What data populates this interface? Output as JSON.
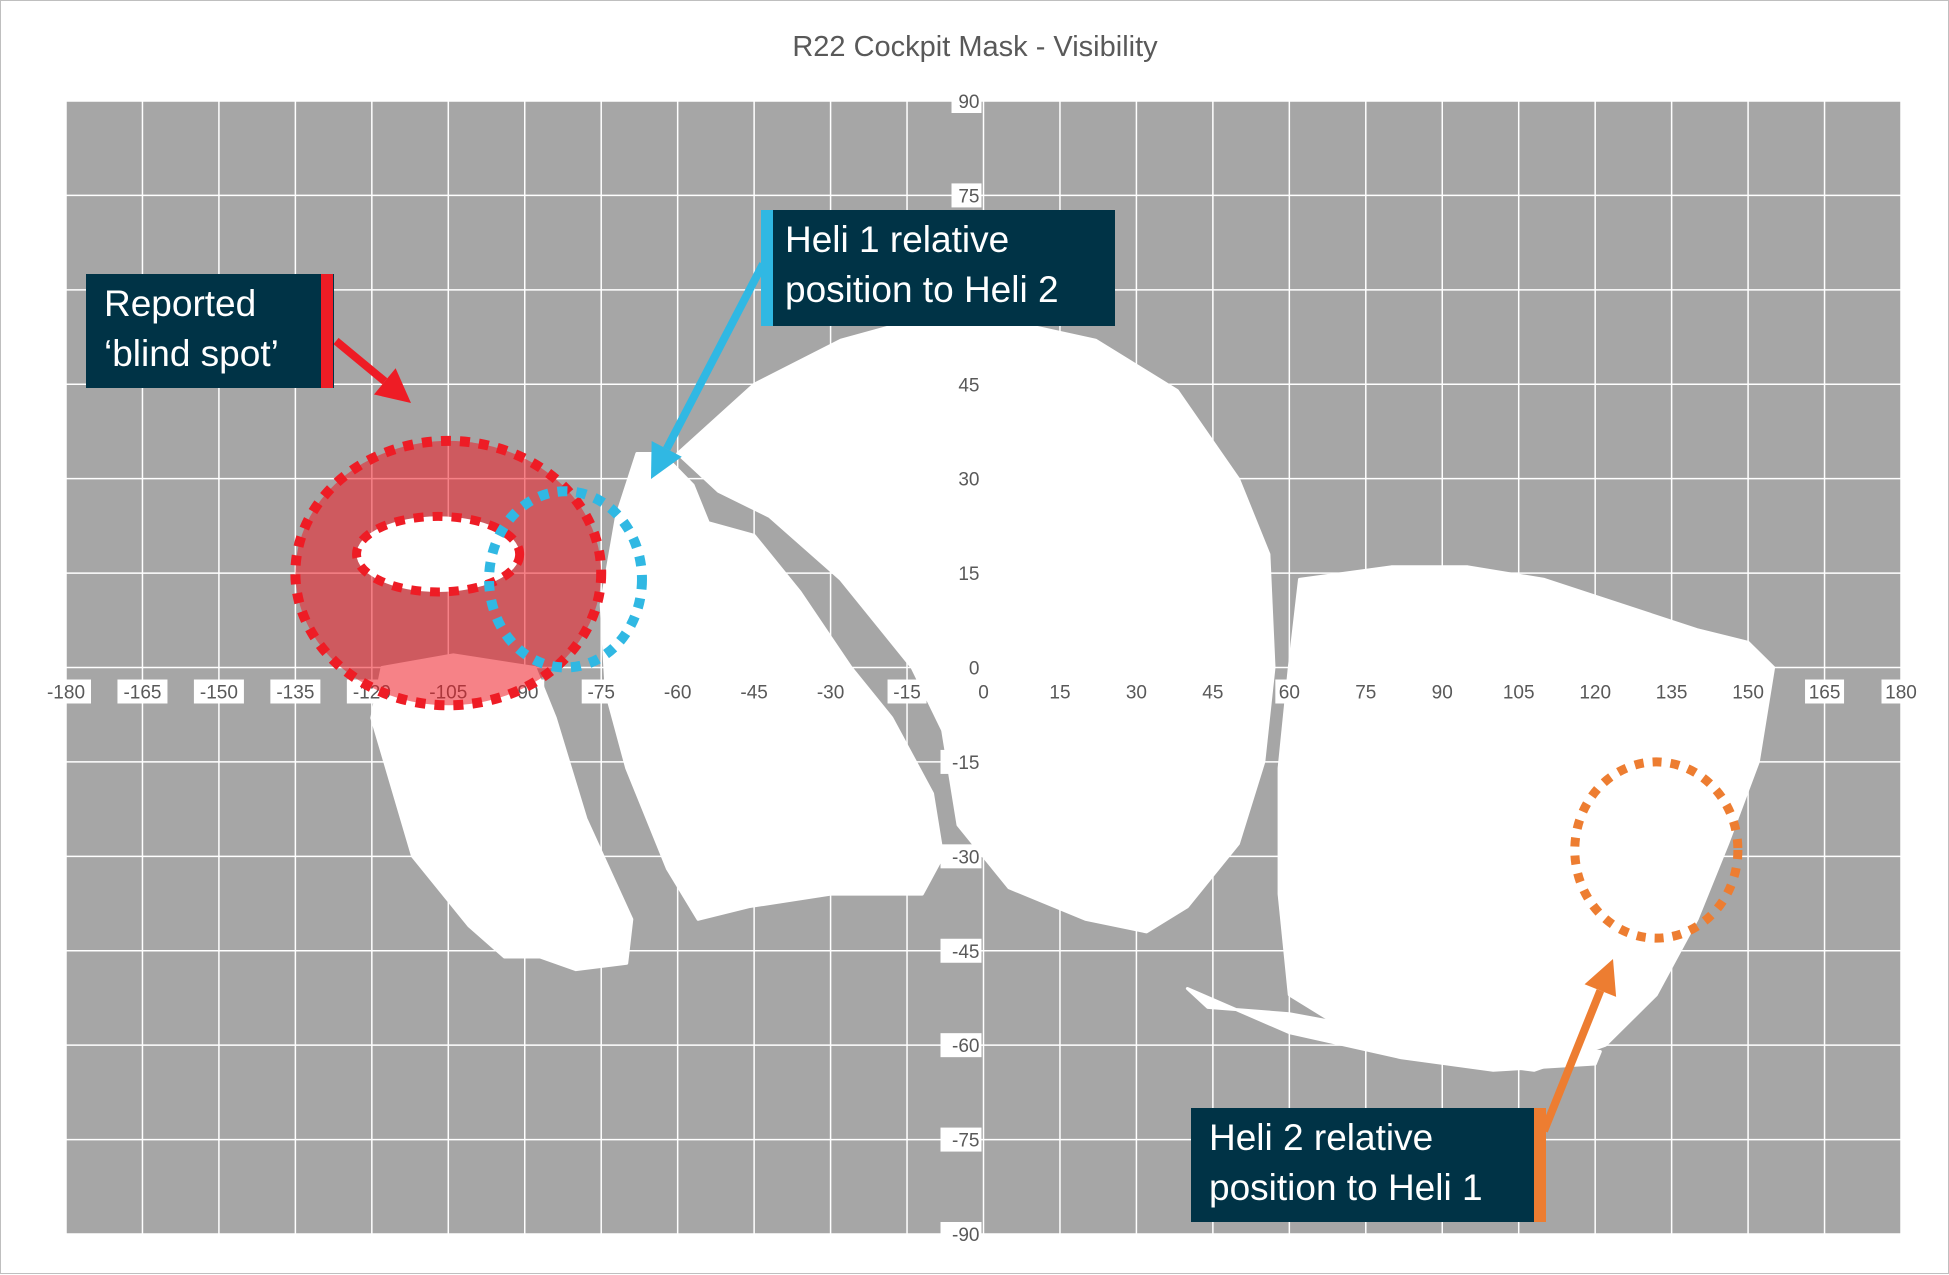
{
  "chart_data": {
    "type": "scatter",
    "title": "R22 Cockpit Mask - Visibility",
    "xlim": [
      -180,
      180
    ],
    "ylim": [
      -90,
      90
    ],
    "x_ticks": [
      -180,
      -165,
      -150,
      -135,
      -120,
      -105,
      -90,
      -75,
      -60,
      -45,
      -30,
      -15,
      0,
      15,
      30,
      45,
      60,
      75,
      90,
      105,
      120,
      135,
      150,
      165,
      180
    ],
    "y_ticks": [
      90,
      75,
      45,
      30,
      15,
      0,
      -15,
      -30,
      -45,
      -60,
      -75,
      -90
    ],
    "x_tick_labels": [
      "-180",
      "-165",
      "-150",
      "-135",
      "-120",
      "-105",
      "-90",
      "-75",
      "-60",
      "-45",
      "-30",
      "-15",
      "0",
      "15",
      "30",
      "45",
      "60",
      "75",
      "90",
      "105",
      "120",
      "135",
      "150",
      "165",
      "180"
    ],
    "y_tick_labels": [
      "90",
      "75",
      "45",
      "30",
      "15",
      "0",
      "-15",
      "-30",
      "-45",
      "-60",
      "-75",
      "-90"
    ],
    "grid": true,
    "colors": {
      "masked": "#a6a6a6",
      "visible": "#ffffff",
      "grid": "#ffffff",
      "blind_spot": "#ee1c25",
      "heli1": "#30b8e3",
      "heli2": "#ed7d31",
      "callout_bg": "#003346"
    },
    "visible_regions": [
      {
        "name": "left-lower-window",
        "points": [
          [
            -120,
            -8
          ],
          [
            -112,
            -30
          ],
          [
            -101,
            -41
          ],
          [
            -94,
            -46
          ],
          [
            -87,
            -46
          ],
          [
            -80,
            -48
          ],
          [
            -70,
            -47
          ],
          [
            -69,
            -40
          ],
          [
            -78,
            -24
          ],
          [
            -84,
            -8
          ],
          [
            -88,
            0
          ],
          [
            -104,
            2
          ],
          [
            -118,
            0
          ]
        ]
      },
      {
        "name": "left-door-window",
        "points": [
          [
            -68,
            34
          ],
          [
            -63,
            34
          ],
          [
            -57,
            29
          ],
          [
            -54,
            23
          ],
          [
            -45,
            21
          ],
          [
            -36,
            12
          ],
          [
            -26,
            0
          ],
          [
            -18,
            -8
          ],
          [
            -10,
            -20
          ],
          [
            -8,
            -30
          ],
          [
            -12,
            -36
          ],
          [
            -30,
            -36
          ],
          [
            -46,
            -38
          ],
          [
            -56,
            -40
          ],
          [
            -62,
            -32
          ],
          [
            -70,
            -16
          ],
          [
            -74,
            -4
          ],
          [
            -75,
            10
          ],
          [
            -72,
            24
          ]
        ]
      },
      {
        "name": "front-windshield-left",
        "points": [
          [
            -60,
            34
          ],
          [
            -45,
            45
          ],
          [
            -28,
            52
          ],
          [
            -10,
            56
          ],
          [
            5,
            55
          ],
          [
            22,
            52
          ],
          [
            38,
            44
          ],
          [
            50,
            30
          ],
          [
            56,
            18
          ],
          [
            57,
            0
          ],
          [
            55,
            -15
          ],
          [
            50,
            -28
          ],
          [
            40,
            -38
          ],
          [
            32,
            -42
          ],
          [
            20,
            -40
          ],
          [
            5,
            -35
          ],
          [
            -5,
            -25
          ],
          [
            -8,
            -10
          ],
          [
            -14,
            0
          ],
          [
            -28,
            14
          ],
          [
            -42,
            24
          ],
          [
            -52,
            28
          ]
        ]
      },
      {
        "name": "front-windshield-right",
        "points": [
          [
            62,
            14
          ],
          [
            80,
            16
          ],
          [
            95,
            16
          ],
          [
            110,
            14
          ],
          [
            125,
            10
          ],
          [
            140,
            6
          ],
          [
            150,
            4
          ],
          [
            155,
            0
          ],
          [
            152,
            -15
          ],
          [
            146,
            -28
          ],
          [
            140,
            -40
          ],
          [
            132,
            -52
          ],
          [
            122,
            -60
          ],
          [
            108,
            -64
          ],
          [
            90,
            -62
          ],
          [
            72,
            -58
          ],
          [
            60,
            -52
          ],
          [
            58,
            -36
          ],
          [
            58,
            -16
          ],
          [
            60,
            0
          ]
        ]
      },
      {
        "name": "chin-bubble",
        "points": [
          [
            40,
            -51
          ],
          [
            60,
            -58
          ],
          [
            82,
            -62
          ],
          [
            100,
            -64
          ],
          [
            120,
            -63
          ],
          [
            121,
            -61
          ],
          [
            100,
            -60
          ],
          [
            80,
            -58
          ],
          [
            60,
            -55
          ],
          [
            44,
            -54
          ]
        ]
      }
    ],
    "annotations": [
      {
        "label": "Reported ‘blind spot’",
        "lines": [
          "Reported",
          "‘blind spot’"
        ],
        "center": [
          -105,
          15
        ],
        "radii": [
          30,
          21
        ]
      },
      {
        "label": "Reported blind spot core",
        "center": [
          -107,
          18
        ],
        "radii": [
          16,
          6
        ]
      },
      {
        "label": "Heli 1 relative position to Heli 2",
        "lines": [
          "Heli 1 relative",
          "position to Heli 2"
        ],
        "center": [
          -82,
          14
        ],
        "radii": [
          15,
          14
        ]
      },
      {
        "label": "Heli 2 relative position to Heli 1",
        "lines": [
          "Heli 2 relative",
          "position to Heli 1"
        ],
        "center": [
          132,
          -29
        ],
        "radii": [
          16,
          14
        ]
      }
    ]
  }
}
